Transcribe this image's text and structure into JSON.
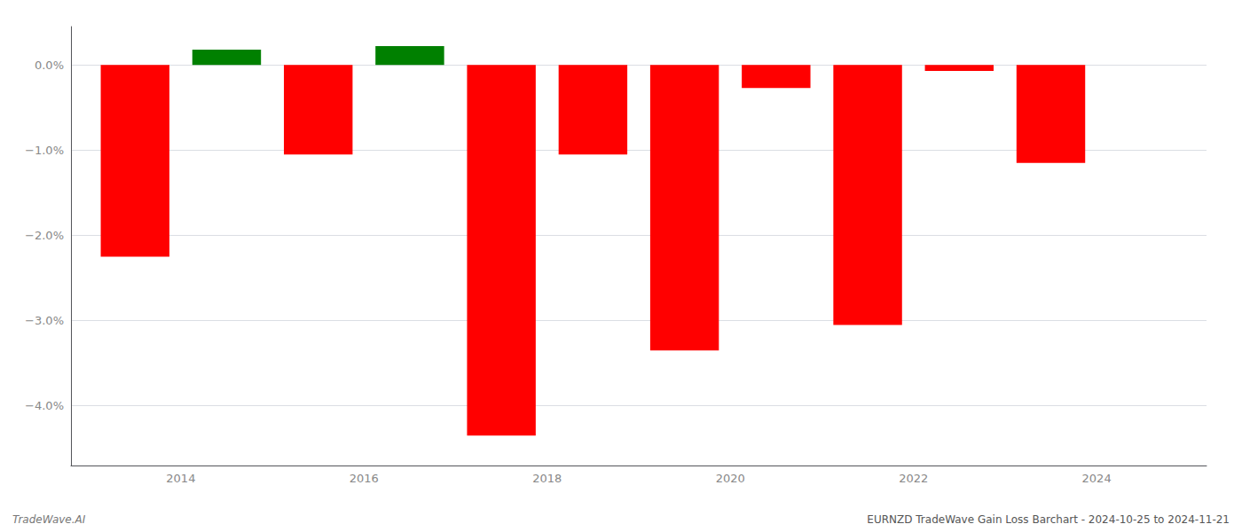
{
  "chart_data": {
    "type": "bar",
    "x": [
      2013.5,
      2014.5,
      2015.5,
      2016.5,
      2017.5,
      2018.5,
      2019.5,
      2020.5,
      2021.5,
      2022.5,
      2023.5
    ],
    "values": [
      -2.25,
      0.18,
      -1.05,
      0.22,
      -4.35,
      -1.05,
      -3.35,
      -0.27,
      -3.05,
      -0.07,
      -1.15
    ],
    "colors": [
      "red",
      "green",
      "red",
      "green",
      "red",
      "red",
      "red",
      "red",
      "red",
      "red",
      "red"
    ],
    "xlim": [
      2012.8,
      2025.2
    ],
    "xticks": [
      2014,
      2016,
      2018,
      2020,
      2022,
      2024
    ],
    "ylim": [
      -4.7,
      0.45
    ],
    "yticks": [
      {
        "value": 0.0,
        "label": "0.0%"
      },
      {
        "value": -1.0,
        "label": "−1.0%"
      },
      {
        "value": -2.0,
        "label": "−2.0%"
      },
      {
        "value": -3.0,
        "label": "−3.0%"
      },
      {
        "value": -4.0,
        "label": "−4.0%"
      }
    ],
    "grid": true,
    "annotations": [
      "TradeWave.AI",
      "EURNZD TradeWave Gain Loss Barchart - 2024-10-25 to 2024-11-21"
    ]
  }
}
